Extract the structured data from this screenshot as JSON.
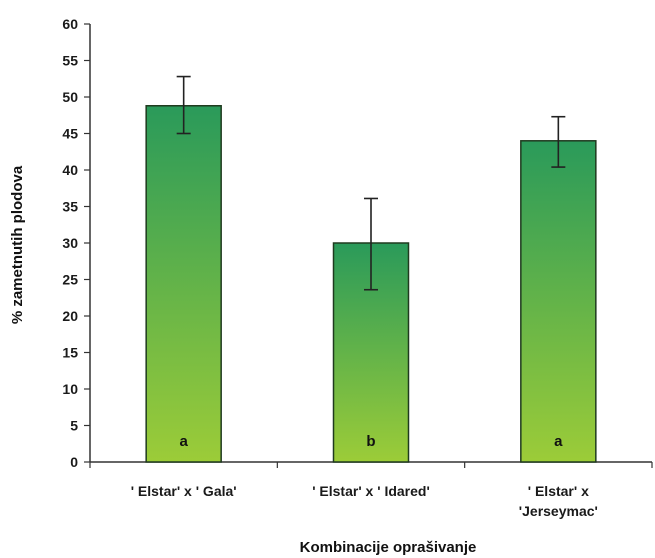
{
  "chart_data": {
    "type": "bar",
    "categories": [
      [
        "' Elstar' x ' Gala'"
      ],
      [
        "' Elstar' x ' Idared'"
      ],
      [
        "' Elstar' x",
        "'Jerseymac'"
      ]
    ],
    "values": [
      48.8,
      30.0,
      44.0
    ],
    "error_bars": [
      {
        "upper": 52.8,
        "lower": 45.0
      },
      {
        "upper": 36.1,
        "lower": 23.6
      },
      {
        "upper": 47.3,
        "lower": 40.4
      }
    ],
    "bar_labels": [
      "a",
      "b",
      "a"
    ],
    "xlabel": "Kombinacije oprašivanje",
    "ylabel": "% zametnutih plodova",
    "ylim": [
      0,
      60
    ],
    "yticks": [
      0,
      5,
      10,
      15,
      20,
      25,
      30,
      35,
      40,
      45,
      50,
      55,
      60
    ],
    "grid": false,
    "colors": {
      "bar_top": "#2a9a5a",
      "bar_bottom": "#9ccc38",
      "bar_edge": "#1f3a1f",
      "axis": "#333333",
      "error_bar": "#222222"
    }
  }
}
